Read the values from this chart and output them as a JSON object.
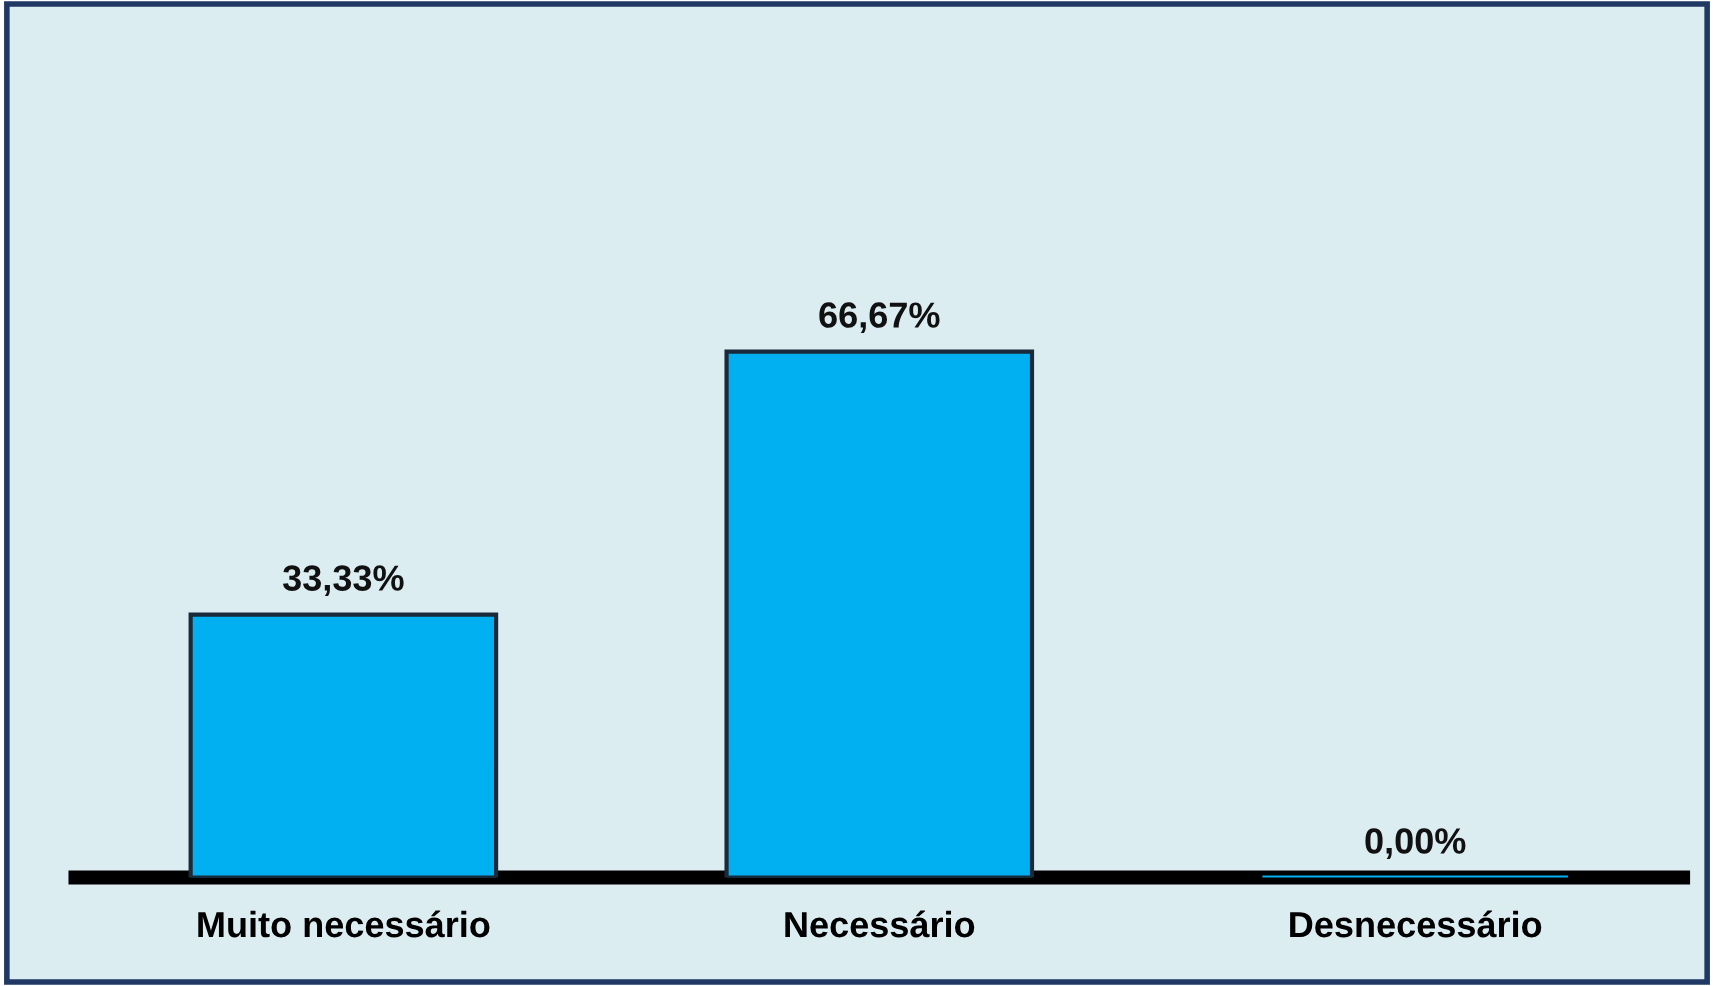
{
  "chart_data": {
    "type": "bar",
    "categories": [
      "Muito necessário",
      "Necessário",
      "Desnecessário"
    ],
    "values": [
      33.33,
      66.67,
      0
    ],
    "value_labels": [
      "33,33%",
      "66,67%",
      "0,00%"
    ],
    "color": "#00b0f0",
    "grid": false,
    "legend": false
  }
}
